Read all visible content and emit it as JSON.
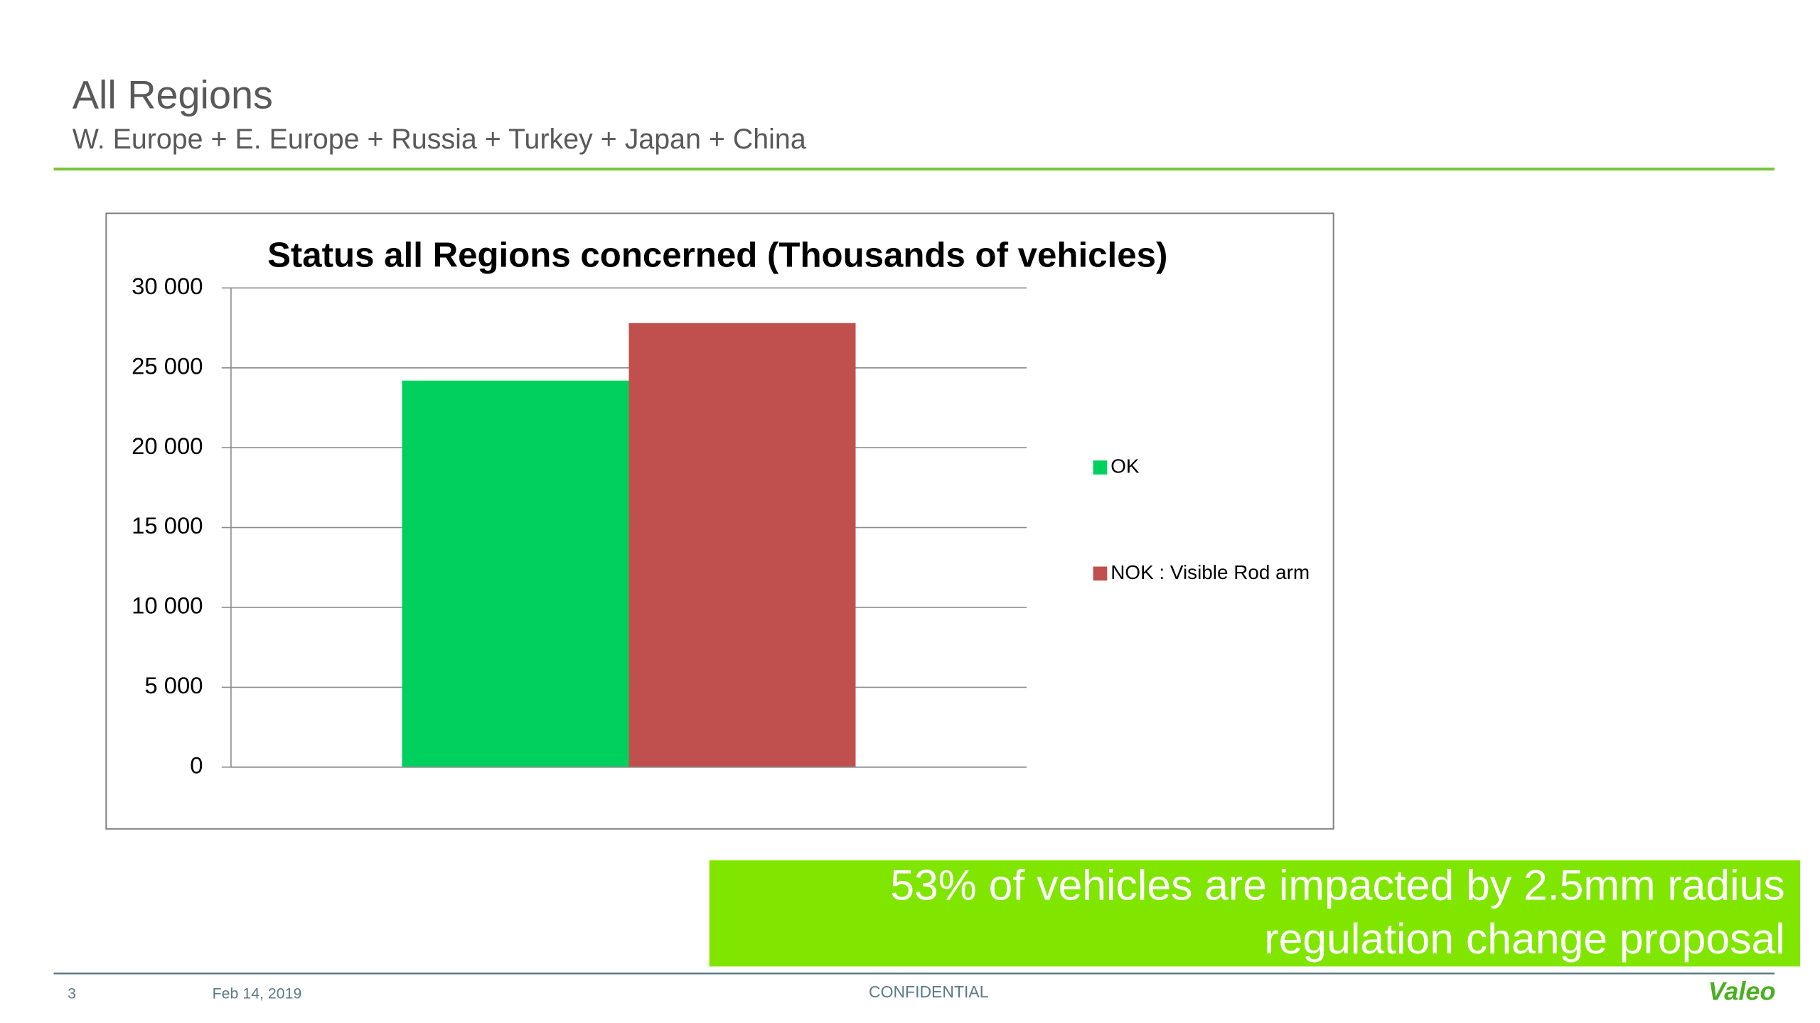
{
  "header": {
    "title": "All Regions",
    "subtitle": "W. Europe + E. Europe + Russia + Turkey + Japan + China"
  },
  "chart_data": {
    "type": "bar",
    "title": "Status all Regions concerned (Thousands of vehicles)",
    "categories": [
      null
    ],
    "series": [
      {
        "name": "OK",
        "color": "#00d15e",
        "values": [
          24200
        ]
      },
      {
        "name": "NOK : Visible Rod arm",
        "color": "#c0504d",
        "values": [
          27800
        ]
      }
    ],
    "ylim": [
      0,
      30000
    ],
    "yticks": [
      0,
      {
        "value": 5000,
        "label": "5 000"
      },
      {
        "value": 10000,
        "label": "10 000"
      },
      {
        "value": 15000,
        "label": "15 000"
      },
      {
        "value": 20000,
        "label": "20 000"
      },
      {
        "value": 25000,
        "label": "25 000"
      },
      {
        "value": 30000,
        "label": "30 000"
      }
    ],
    "grid": true,
    "legend": "right"
  },
  "callout": {
    "lines": [
      "53% of vehicles are impacted by 2.5mm radius",
      "regulation change proposal"
    ]
  },
  "footer": {
    "page": "3",
    "date": "Feb 14, 2019",
    "classification": "CONFIDENTIAL",
    "logo": "Valeo"
  }
}
